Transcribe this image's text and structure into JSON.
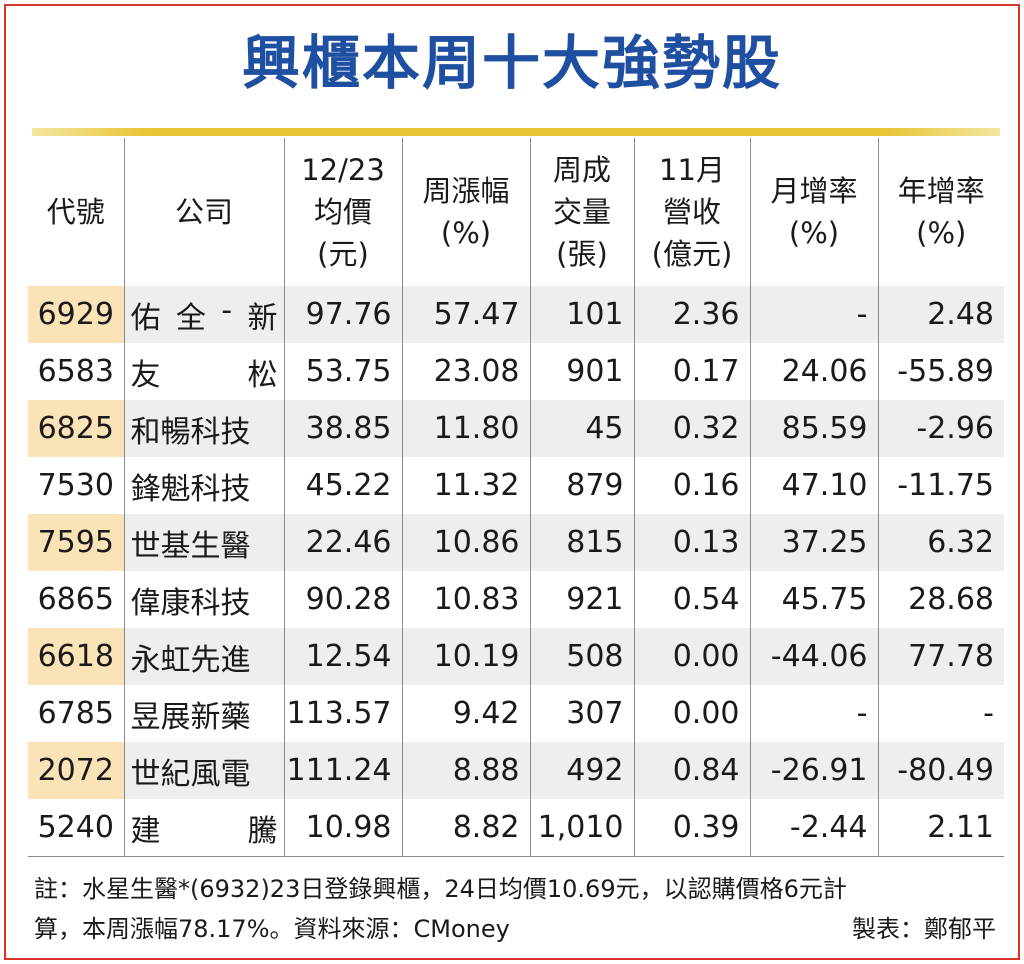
{
  "title": "興櫃本周十大強勢股",
  "chart_data": {
    "type": "table",
    "columns": [
      "代號",
      "公司",
      "12/23\n均價\n(元)",
      "周漲幅\n(%)",
      "周成\n交量\n(張)",
      "11月\n營收\n(億元)",
      "月增率\n(%)",
      "年增率\n(%)"
    ],
    "rows": [
      {
        "code": "6929",
        "company": [
          "佑",
          "全",
          "-",
          "新"
        ],
        "price": "97.76",
        "weekly_change": "57.47",
        "volume": "101",
        "revenue": "2.36",
        "mom": "-",
        "yoy": "2.48"
      },
      {
        "code": "6583",
        "company": [
          "友",
          "松"
        ],
        "price": "53.75",
        "weekly_change": "23.08",
        "volume": "901",
        "revenue": "0.17",
        "mom": "24.06",
        "yoy": "-55.89"
      },
      {
        "code": "6825",
        "company": [
          "和暢科技"
        ],
        "price": "38.85",
        "weekly_change": "11.80",
        "volume": "45",
        "revenue": "0.32",
        "mom": "85.59",
        "yoy": "-2.96"
      },
      {
        "code": "7530",
        "company": [
          "鋒魁科技"
        ],
        "price": "45.22",
        "weekly_change": "11.32",
        "volume": "879",
        "revenue": "0.16",
        "mom": "47.10",
        "yoy": "-11.75"
      },
      {
        "code": "7595",
        "company": [
          "世基生醫"
        ],
        "price": "22.46",
        "weekly_change": "10.86",
        "volume": "815",
        "revenue": "0.13",
        "mom": "37.25",
        "yoy": "6.32"
      },
      {
        "code": "6865",
        "company": [
          "偉康科技"
        ],
        "price": "90.28",
        "weekly_change": "10.83",
        "volume": "921",
        "revenue": "0.54",
        "mom": "45.75",
        "yoy": "28.68"
      },
      {
        "code": "6618",
        "company": [
          "永虹先進"
        ],
        "price": "12.54",
        "weekly_change": "10.19",
        "volume": "508",
        "revenue": "0.00",
        "mom": "-44.06",
        "yoy": "77.78"
      },
      {
        "code": "6785",
        "company": [
          "昱展新藥"
        ],
        "price": "113.57",
        "weekly_change": "9.42",
        "volume": "307",
        "revenue": "0.00",
        "mom": "-",
        "yoy": "-"
      },
      {
        "code": "2072",
        "company": [
          "世紀風電"
        ],
        "price": "111.24",
        "weekly_change": "8.88",
        "volume": "492",
        "revenue": "0.84",
        "mom": "-26.91",
        "yoy": "-80.49"
      },
      {
        "code": "5240",
        "company": [
          "建",
          "騰"
        ],
        "price": "10.98",
        "weekly_change": "8.82",
        "volume": "1,010",
        "revenue": "0.39",
        "mom": "-2.44",
        "yoy": "2.11"
      }
    ]
  },
  "note": {
    "line1": "註：水星生醫*(6932)23日登錄興櫃，24日均價10.69元，以認購價格6元計",
    "line2": "算，本周漲幅78.17%。資料來源：CMoney",
    "credit": "製表：鄭郁平"
  },
  "colors": {
    "title": "#1f4fa0",
    "frame": "#d9342b",
    "rule": "#e8c533",
    "code_highlight": "#fbe3b8",
    "row_shade": "#eeeeee"
  }
}
